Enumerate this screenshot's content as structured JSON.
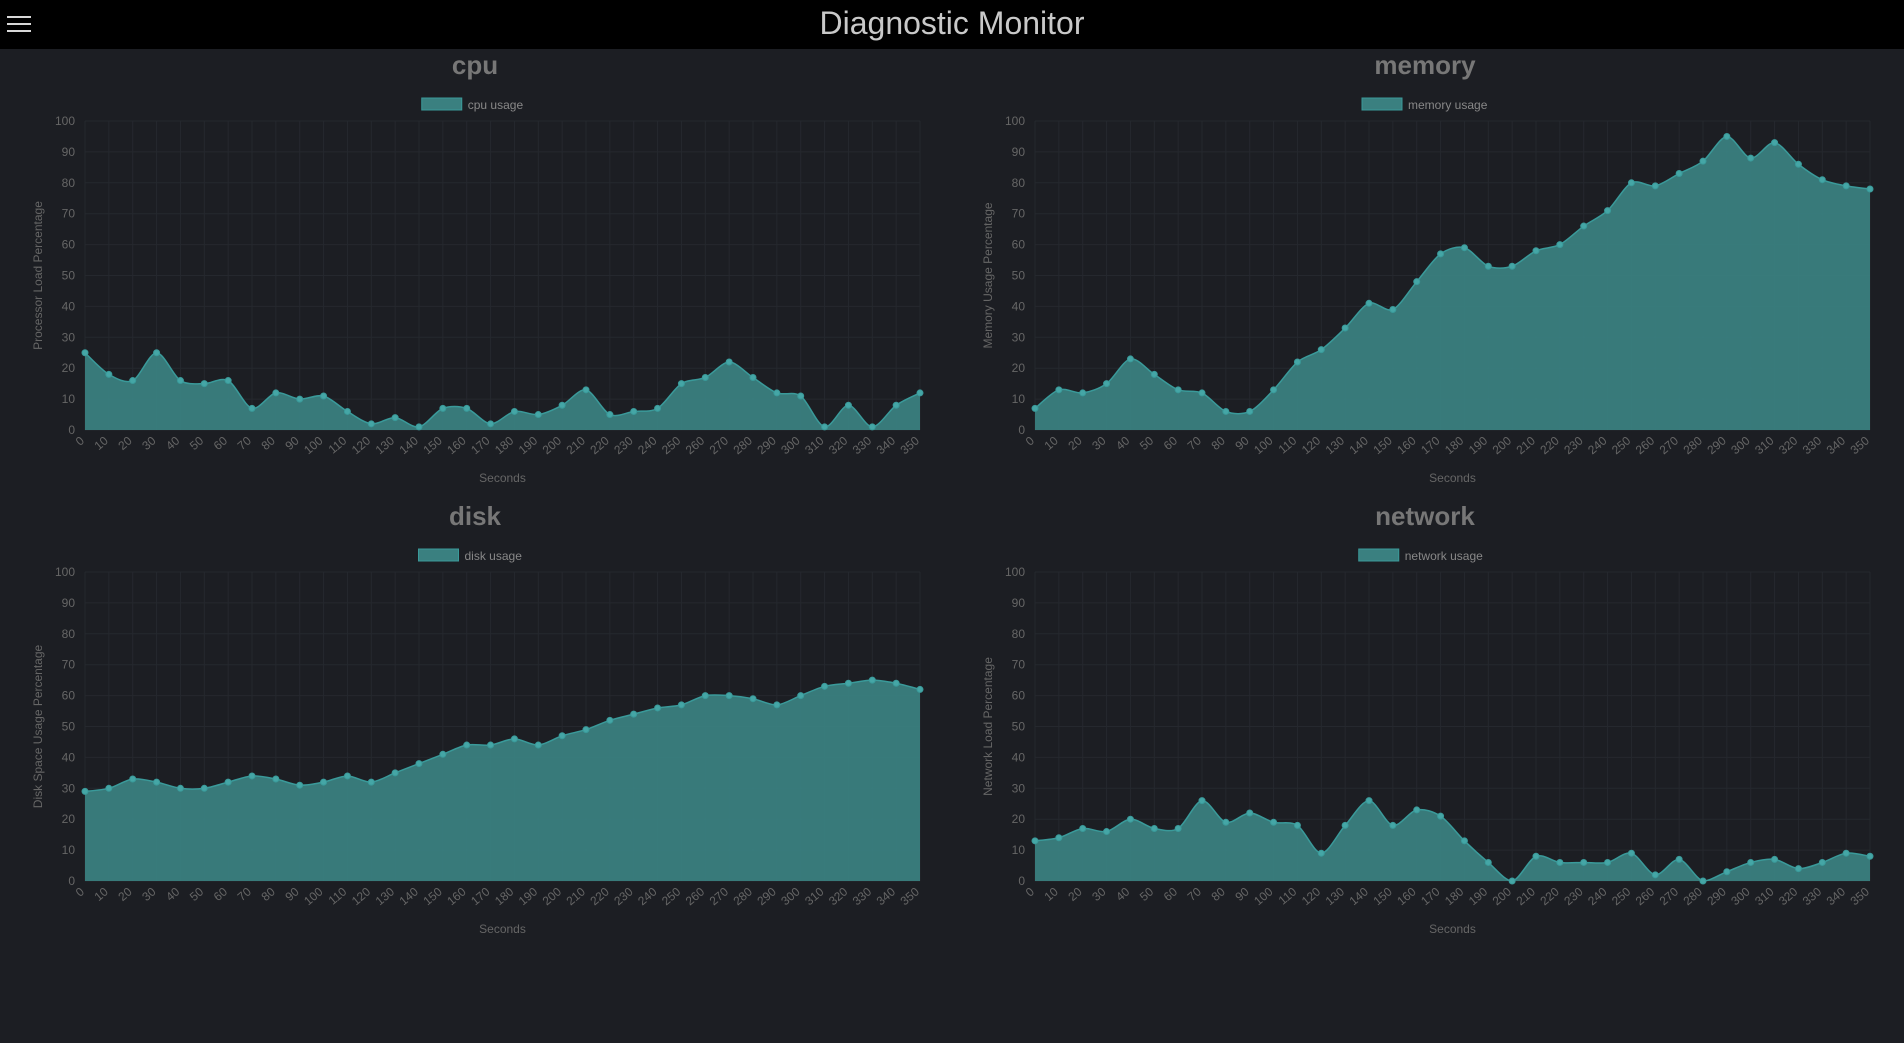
{
  "header": {
    "title": "Diagnostic Monitor",
    "menu_icon": "hamburger-menu-icon"
  },
  "colors": {
    "series_fill": "#3a8080",
    "series_line": "#3a9a9a",
    "point": "#45a6a6",
    "background": "#1c1e23",
    "header_bg": "#000000"
  },
  "chart_data": [
    {
      "id": "cpu",
      "type": "area",
      "title": "cpu",
      "xlabel": "Seconds",
      "ylabel": "Processor Load Percentage",
      "ylim": [
        0,
        100
      ],
      "legend_position": "top-center",
      "grid": true,
      "categories": [
        "0",
        "10",
        "20",
        "30",
        "40",
        "50",
        "60",
        "70",
        "80",
        "90",
        "100",
        "110",
        "120",
        "130",
        "140",
        "150",
        "160",
        "170",
        "180",
        "190",
        "200",
        "210",
        "220",
        "230",
        "240",
        "250",
        "260",
        "270",
        "280",
        "290",
        "300",
        "310",
        "320",
        "330",
        "340",
        "350"
      ],
      "series": [
        {
          "name": "cpu usage",
          "values": [
            25,
            18,
            16,
            25,
            16,
            15,
            16,
            7,
            12,
            10,
            11,
            6,
            2,
            4,
            1,
            7,
            7,
            2,
            6,
            5,
            8,
            13,
            5,
            6,
            7,
            15,
            17,
            22,
            17,
            12,
            11,
            1,
            8,
            1,
            8,
            12
          ]
        }
      ]
    },
    {
      "id": "memory",
      "type": "area",
      "title": "memory",
      "xlabel": "Seconds",
      "ylabel": "Memory Usage Percentage",
      "ylim": [
        0,
        100
      ],
      "legend_position": "top-center",
      "grid": true,
      "categories": [
        "0",
        "10",
        "20",
        "30",
        "40",
        "50",
        "60",
        "70",
        "80",
        "90",
        "100",
        "110",
        "120",
        "130",
        "140",
        "150",
        "160",
        "170",
        "180",
        "190",
        "200",
        "210",
        "220",
        "230",
        "240",
        "250",
        "260",
        "270",
        "280",
        "290",
        "300",
        "310",
        "320",
        "330",
        "340",
        "350"
      ],
      "series": [
        {
          "name": "memory usage",
          "values": [
            7,
            13,
            12,
            15,
            23,
            18,
            13,
            12,
            6,
            6,
            13,
            22,
            26,
            33,
            41,
            39,
            48,
            57,
            59,
            53,
            53,
            58,
            60,
            66,
            71,
            80,
            79,
            83,
            87,
            95,
            88,
            93,
            86,
            81,
            79,
            78
          ]
        }
      ]
    },
    {
      "id": "disk",
      "type": "area",
      "title": "disk",
      "xlabel": "Seconds",
      "ylabel": "Disk Space Usage Percentage",
      "ylim": [
        0,
        100
      ],
      "legend_position": "top-center",
      "grid": true,
      "categories": [
        "0",
        "10",
        "20",
        "30",
        "40",
        "50",
        "60",
        "70",
        "80",
        "90",
        "100",
        "110",
        "120",
        "130",
        "140",
        "150",
        "160",
        "170",
        "180",
        "190",
        "200",
        "210",
        "220",
        "230",
        "240",
        "250",
        "260",
        "270",
        "280",
        "290",
        "300",
        "310",
        "320",
        "330",
        "340",
        "350"
      ],
      "series": [
        {
          "name": "disk usage",
          "values": [
            29,
            30,
            33,
            32,
            30,
            30,
            32,
            34,
            33,
            31,
            32,
            34,
            32,
            35,
            38,
            41,
            44,
            44,
            46,
            44,
            47,
            49,
            52,
            54,
            56,
            57,
            60,
            60,
            59,
            57,
            60,
            63,
            64,
            65,
            64,
            62
          ]
        }
      ]
    },
    {
      "id": "network",
      "type": "area",
      "title": "network",
      "xlabel": "Seconds",
      "ylabel": "Network Load Percentage",
      "ylim": [
        0,
        100
      ],
      "legend_position": "top-center",
      "grid": true,
      "categories": [
        "0",
        "10",
        "20",
        "30",
        "40",
        "50",
        "60",
        "70",
        "80",
        "90",
        "100",
        "110",
        "120",
        "130",
        "140",
        "150",
        "160",
        "170",
        "180",
        "190",
        "200",
        "210",
        "220",
        "230",
        "240",
        "250",
        "260",
        "270",
        "280",
        "290",
        "300",
        "310",
        "320",
        "330",
        "340",
        "350"
      ],
      "series": [
        {
          "name": "network usage",
          "values": [
            13,
            14,
            17,
            16,
            20,
            17,
            17,
            26,
            19,
            22,
            19,
            18,
            9,
            18,
            26,
            18,
            23,
            21,
            13,
            6,
            0,
            8,
            6,
            6,
            6,
            9,
            2,
            7,
            0,
            3,
            6,
            7,
            4,
            6,
            9,
            8
          ]
        }
      ]
    }
  ]
}
